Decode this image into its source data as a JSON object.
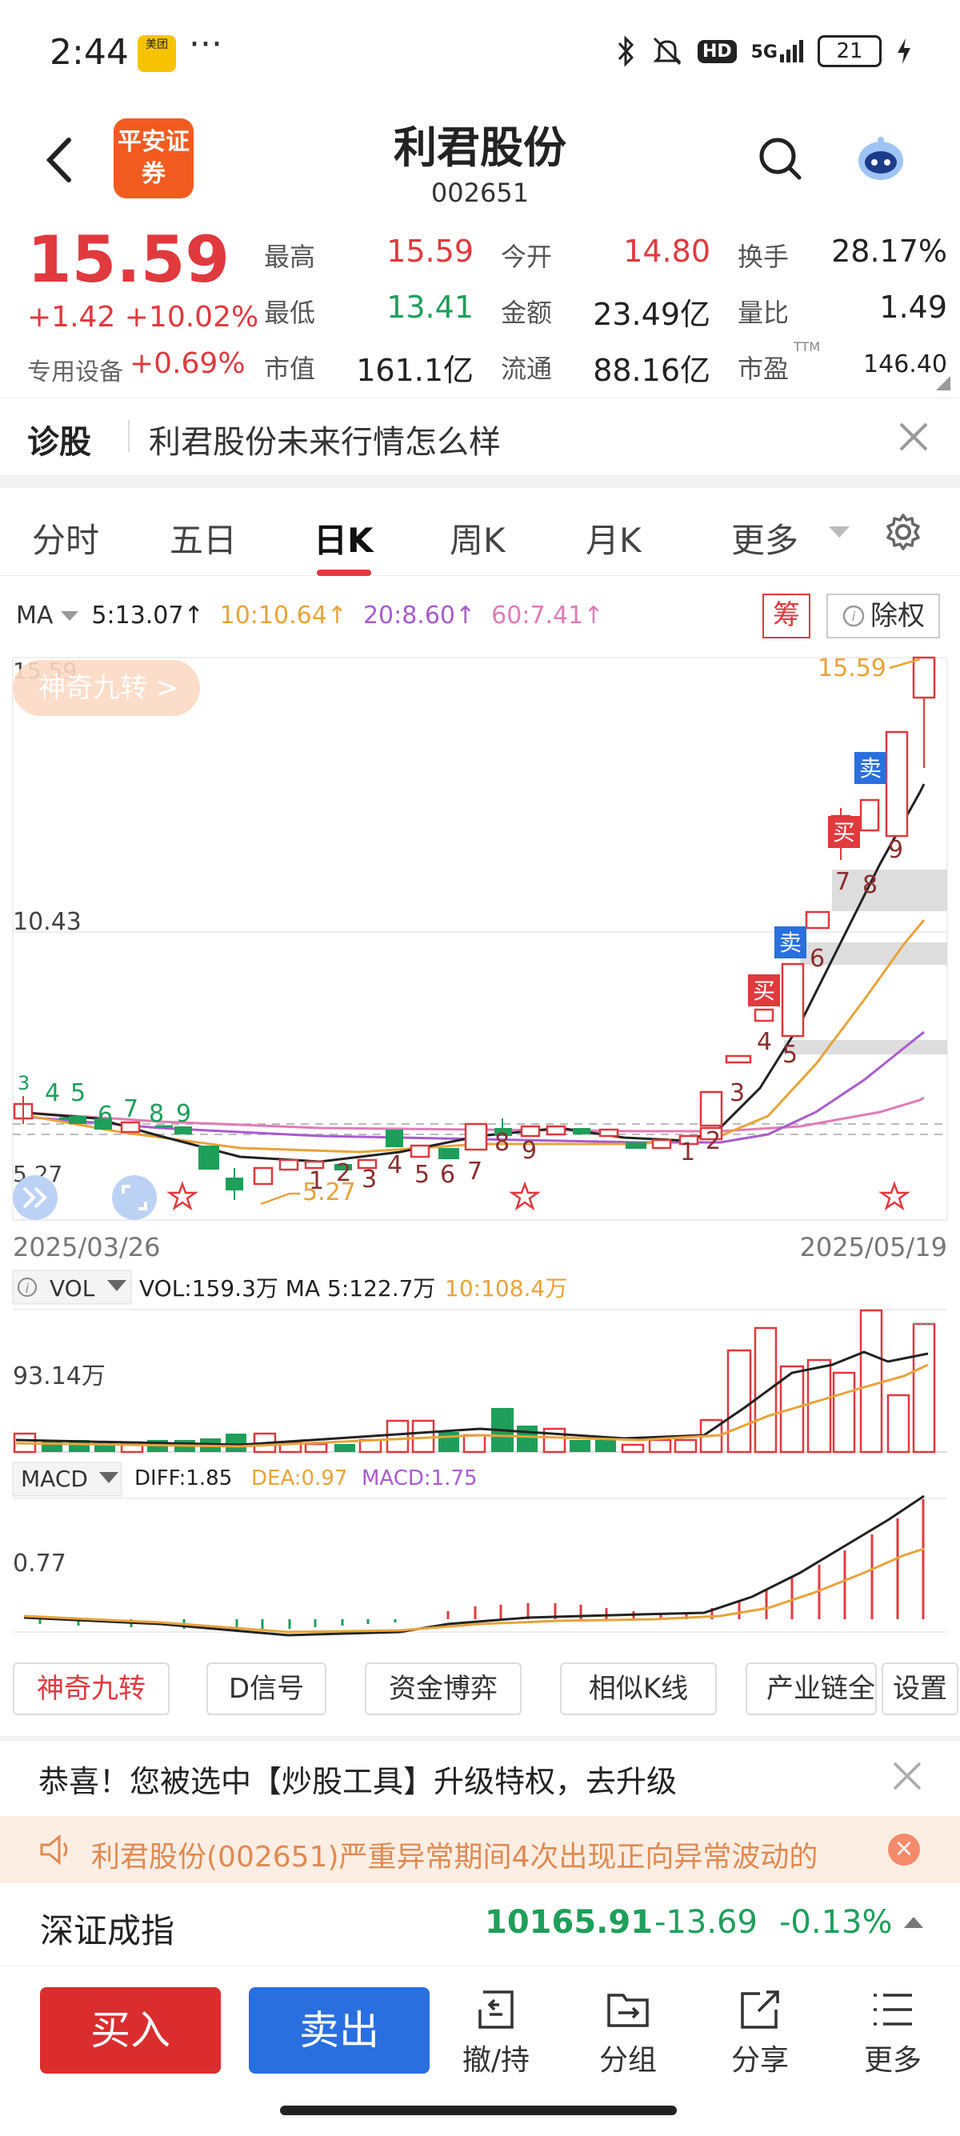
{
  "status_bar": {
    "time": "2:44",
    "app_badge": "美团",
    "dots": "···",
    "icons": [
      "bluetooth-icon",
      "mute-icon",
      "hd-icon",
      "5g-signal-icon"
    ],
    "hd": "HD",
    "network": "5G",
    "battery": "21"
  },
  "header": {
    "broker_logo": "平安证券",
    "stock_name": "利君股份",
    "stock_code": "002651"
  },
  "quote": {
    "price": "15.59",
    "change": "+1.42 +10.02%",
    "sector_label": "专用设备",
    "sector_change": "+0.69%",
    "fields": [
      {
        "label": "最高",
        "value": "15.59",
        "color": "red"
      },
      {
        "label": "今开",
        "value": "14.80",
        "color": "red"
      },
      {
        "label": "换手",
        "value": "28.17%",
        "color": "black"
      },
      {
        "label": "最低",
        "value": "13.41",
        "color": "green"
      },
      {
        "label": "金额",
        "value": "23.49亿",
        "color": "black"
      },
      {
        "label": "量比",
        "value": "1.49",
        "color": "black"
      },
      {
        "label": "市值",
        "value": "161.1亿",
        "color": "black"
      },
      {
        "label": "流通",
        "value": "88.16亿",
        "color": "black"
      },
      {
        "label": "市盈",
        "value": "146.40",
        "color": "black"
      }
    ],
    "ttm": "TTM"
  },
  "diagnose": {
    "title": "诊股",
    "text": "利君股份未来行情怎么样"
  },
  "tabs": [
    "分时",
    "五日",
    "日K",
    "周K",
    "月K",
    "更多"
  ],
  "active_tab": "日K",
  "ma": {
    "label": "MA",
    "ma5": "5:13.07↑",
    "ma10": "10:10.64↑",
    "ma20": "20:8.60↑",
    "ma60": "60:7.41↑",
    "chip": "筹",
    "rights": "除权"
  },
  "kline": {
    "badge": "神奇九转 >",
    "high_label": "15.59",
    "mid_label": "10.43",
    "low_label": "5.27",
    "max_marker": "15.59",
    "min_marker": "5.27",
    "start_date": "2025/03/26",
    "end_date": "2025/05/19",
    "buy_tag": "买",
    "sell_tag": "卖",
    "seq_top": [
      "3",
      "4",
      "5",
      "6",
      "7",
      "8",
      "9"
    ],
    "seq_bottom": [
      "1",
      "2",
      "3",
      "4",
      "5",
      "6",
      "7",
      "8",
      "9"
    ],
    "seq_rise": [
      "1",
      "2",
      "3",
      "4",
      "5",
      "6",
      "7",
      "8",
      "9"
    ]
  },
  "vol": {
    "label": "VOL",
    "values": "VOL:159.3万 MA 5:122.7万",
    "ma10": "10:108.4万",
    "axis": "93.14万"
  },
  "macd": {
    "label": "MACD",
    "diff": "DIFF:1.85",
    "dea": "DEA:0.97",
    "macd": "MACD:1.75",
    "axis": "0.77"
  },
  "func_buttons": [
    "神奇九转",
    "D信号",
    "资金博弈",
    "相似K线",
    "产业链全",
    "设置"
  ],
  "promo": {
    "text": "恭喜！您被选中【炒股工具】升级特权，去升级"
  },
  "notice": {
    "text": "利君股份(002651)严重异常期间4次出现正向异常波动的"
  },
  "index": {
    "name": "深证成指",
    "value": "10165.91",
    "change": "-13.69",
    "pct": "-0.13%"
  },
  "bottom": {
    "buy": "买入",
    "sell": "卖出",
    "nav": [
      {
        "label": "撤/持",
        "icon": "withdraw-icon"
      },
      {
        "label": "分组",
        "icon": "folder-icon"
      },
      {
        "label": "分享",
        "icon": "share-icon"
      },
      {
        "label": "更多",
        "icon": "menu-icon"
      }
    ]
  },
  "colors": {
    "up": "#e0393e",
    "down": "#1f9e5a",
    "ma5": "#222222",
    "ma10": "#e8a33a",
    "ma20": "#a85bd0",
    "ma60": "#e07bb6",
    "accent": "#2a6fe0"
  }
}
